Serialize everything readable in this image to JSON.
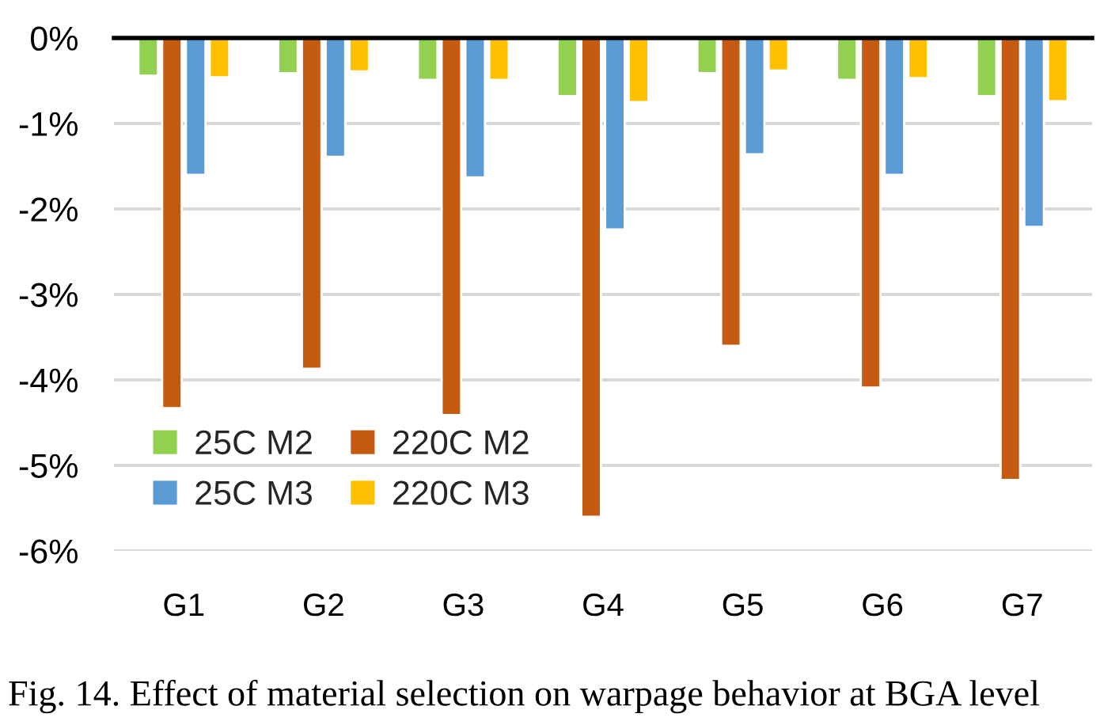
{
  "chart_data": {
    "type": "bar",
    "categories": [
      "G1",
      "G2",
      "G3",
      "G4",
      "G5",
      "G6",
      "G7"
    ],
    "series": [
      {
        "name": "25C M2",
        "color": "#92d050",
        "values": [
          -0.44,
          -0.41,
          -0.49,
          -0.68,
          -0.41,
          -0.49,
          -0.68
        ]
      },
      {
        "name": "220C M2",
        "color": "#c55a11",
        "values": [
          -4.33,
          -3.87,
          -4.41,
          -5.6,
          -3.6,
          -4.09,
          -5.17
        ]
      },
      {
        "name": "25C M3",
        "color": "#5b9bd5",
        "values": [
          -1.6,
          -1.39,
          -1.63,
          -2.24,
          -1.36,
          -1.6,
          -2.21
        ]
      },
      {
        "name": "220C M3",
        "color": "#ffc000",
        "values": [
          -0.46,
          -0.39,
          -0.49,
          -0.75,
          -0.38,
          -0.47,
          -0.74
        ]
      }
    ],
    "ylim": [
      -6,
      0
    ],
    "yticks": [
      {
        "value": 0,
        "label": "0%"
      },
      {
        "value": -1,
        "label": "-1%"
      },
      {
        "value": -2,
        "label": "-2%"
      },
      {
        "value": -3,
        "label": "-3%"
      },
      {
        "value": -4,
        "label": "-4%"
      },
      {
        "value": -5,
        "label": "-5%"
      },
      {
        "value": -6,
        "label": "-6%"
      }
    ],
    "grid": "y",
    "legend": "bottom left",
    "annotations": [
      "Fig. 14. Effect of material selection on warpage behavior at BGA level"
    ]
  }
}
